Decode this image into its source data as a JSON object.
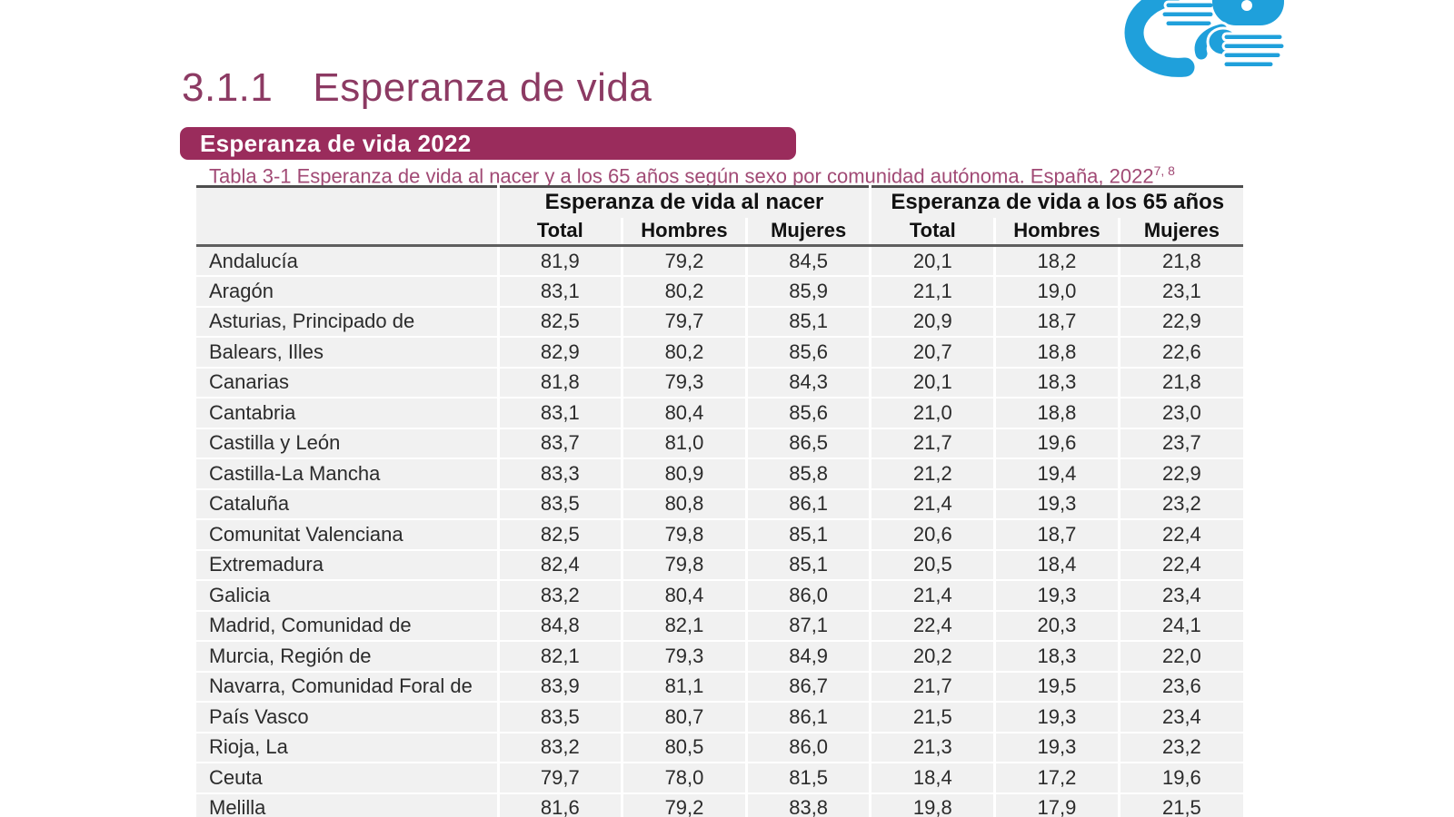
{
  "page": {
    "section_number": "3.1.1",
    "section_title": "Esperanza de vida",
    "banner_title": "Esperanza de vida 2022",
    "table_caption": "Tabla 3-1 Esperanza de vida al nacer y a los 65 años según sexo por comunidad autónoma. España, 2022",
    "caption_footnote": "7, 8"
  },
  "colors": {
    "heading": "#8C3A63",
    "banner_bg": "#9A2C5C",
    "caption": "#A14A75",
    "row_bg": "#F1F1F1",
    "border_dark": "#4D4D4D",
    "logo_blue": "#1FA0DB"
  },
  "logo": {
    "icon": "hands-logo"
  },
  "table": {
    "group_headers": [
      {
        "label": "Esperanza de vida al nacer",
        "colspan": 3
      },
      {
        "label": "Esperanza de vida a los 65 años",
        "colspan": 3
      }
    ],
    "sub_headers": [
      "Total",
      "Hombres",
      "Mujeres",
      "Total",
      "Hombres",
      "Mujeres"
    ],
    "rows": [
      {
        "region": "Andalucía",
        "values": [
          "81,9",
          "79,2",
          "84,5",
          "20,1",
          "18,2",
          "21,8"
        ]
      },
      {
        "region": "Aragón",
        "values": [
          "83,1",
          "80,2",
          "85,9",
          "21,1",
          "19,0",
          "23,1"
        ]
      },
      {
        "region": "Asturias, Principado de",
        "values": [
          "82,5",
          "79,7",
          "85,1",
          "20,9",
          "18,7",
          "22,9"
        ]
      },
      {
        "region": "Balears, Illes",
        "values": [
          "82,9",
          "80,2",
          "85,6",
          "20,7",
          "18,8",
          "22,6"
        ]
      },
      {
        "region": "Canarias",
        "values": [
          "81,8",
          "79,3",
          "84,3",
          "20,1",
          "18,3",
          "21,8"
        ]
      },
      {
        "region": "Cantabria",
        "values": [
          "83,1",
          "80,4",
          "85,6",
          "21,0",
          "18,8",
          "23,0"
        ]
      },
      {
        "region": "Castilla y León",
        "values": [
          "83,7",
          "81,0",
          "86,5",
          "21,7",
          "19,6",
          "23,7"
        ]
      },
      {
        "region": "Castilla-La Mancha",
        "values": [
          "83,3",
          "80,9",
          "85,8",
          "21,2",
          "19,4",
          "22,9"
        ]
      },
      {
        "region": "Cataluña",
        "values": [
          "83,5",
          "80,8",
          "86,1",
          "21,4",
          "19,3",
          "23,2"
        ]
      },
      {
        "region": "Comunitat Valenciana",
        "values": [
          "82,5",
          "79,8",
          "85,1",
          "20,6",
          "18,7",
          "22,4"
        ]
      },
      {
        "region": "Extremadura",
        "values": [
          "82,4",
          "79,8",
          "85,1",
          "20,5",
          "18,4",
          "22,4"
        ]
      },
      {
        "region": "Galicia",
        "values": [
          "83,2",
          "80,4",
          "86,0",
          "21,4",
          "19,3",
          "23,4"
        ]
      },
      {
        "region": "Madrid, Comunidad de",
        "values": [
          "84,8",
          "82,1",
          "87,1",
          "22,4",
          "20,3",
          "24,1"
        ]
      },
      {
        "region": "Murcia, Región de",
        "values": [
          "82,1",
          "79,3",
          "84,9",
          "20,2",
          "18,3",
          "22,0"
        ]
      },
      {
        "region": "Navarra, Comunidad Foral de",
        "values": [
          "83,9",
          "81,1",
          "86,7",
          "21,7",
          "19,5",
          "23,6"
        ]
      },
      {
        "region": "País Vasco",
        "values": [
          "83,5",
          "80,7",
          "86,1",
          "21,5",
          "19,3",
          "23,4"
        ]
      },
      {
        "region": "Rioja, La",
        "values": [
          "83,2",
          "80,5",
          "86,0",
          "21,3",
          "19,3",
          "23,2"
        ]
      },
      {
        "region": "Ceuta",
        "values": [
          "79,7",
          "78,0",
          "81,5",
          "18,4",
          "17,2",
          "19,6"
        ]
      },
      {
        "region": "Melilla",
        "values": [
          "81,6",
          "79,2",
          "83,8",
          "19,8",
          "17,9",
          "21,5"
        ]
      }
    ]
  }
}
